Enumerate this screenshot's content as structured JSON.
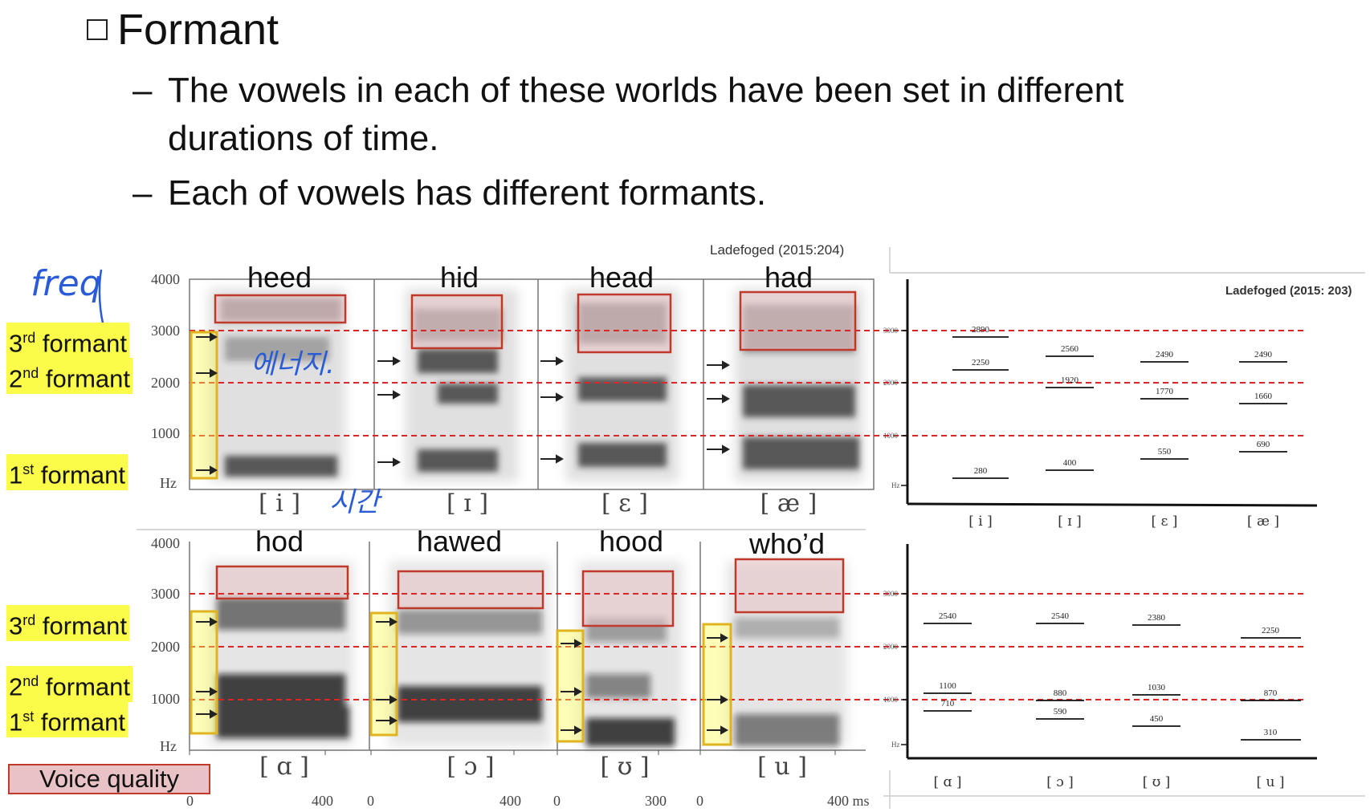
{
  "slide": {
    "title": "Formant",
    "bullets": [
      "The vowels in each of these worlds have been set in different",
      "durations of time.",
      "Each of vowels has different formants."
    ]
  },
  "sources": {
    "left": "Ladefoged (2015:204)",
    "right": "Ladefoged (2015: 203)"
  },
  "words_top": [
    "heed",
    "hid",
    "head",
    "had"
  ],
  "words_bottom": [
    "hod",
    "hawed",
    "hood",
    "who’d"
  ],
  "ipa_top": [
    "[ i ]",
    "[ ɪ ]",
    "[ ɛ ]",
    "[ æ ]"
  ],
  "ipa_bottom": [
    "[ ɑ ]",
    "[ ɔ ]",
    "[ ʊ ]",
    "[ u ]"
  ],
  "y_ticks": [
    "4000",
    "3000",
    "2000",
    "1000",
    "Hz"
  ],
  "x_ticks": [
    "0",
    "400",
    "0",
    "400",
    "0",
    "300",
    "0",
    "400 ms"
  ],
  "formant_labels": {
    "third": {
      "num": "3",
      "sup": "rd",
      "text": " formant"
    },
    "second": {
      "num": "2",
      "sup": "nd",
      "text": " formant"
    },
    "first": {
      "num": "1",
      "sup": "st",
      "text": " formant"
    }
  },
  "voice_quality": "Voice quality",
  "annotations": {
    "freq": "freq",
    "energy": "에너지.",
    "time": "시간"
  },
  "right_chart_top": {
    "ipa": [
      "[ i ]",
      "[ ɪ ]",
      "[ ɛ ]",
      "[ æ ]"
    ],
    "F3": [
      2890,
      2560,
      2490,
      2490
    ],
    "F2": [
      2250,
      1920,
      1770,
      1660
    ],
    "F1": [
      280,
      400,
      550,
      690
    ]
  },
  "right_chart_bottom": {
    "ipa": [
      "[ ɑ ]",
      "[ ɔ ]",
      "[ ʊ ]",
      "[ u ]"
    ],
    "F3": [
      2540,
      2540,
      2380,
      2250
    ],
    "F2": [
      1100,
      880,
      1030,
      870
    ],
    "F1": [
      710,
      590,
      450,
      310
    ]
  },
  "right_ticks": [
    "3000",
    "2000",
    "1000",
    "Hz"
  ],
  "colors": {
    "highlight": "#fbfb4a",
    "voice_quality_fill": "#e8c2c4",
    "box_red": "#c0392b",
    "dashed_red": "#d62828",
    "annotation_blue": "#2a5bd7"
  }
}
